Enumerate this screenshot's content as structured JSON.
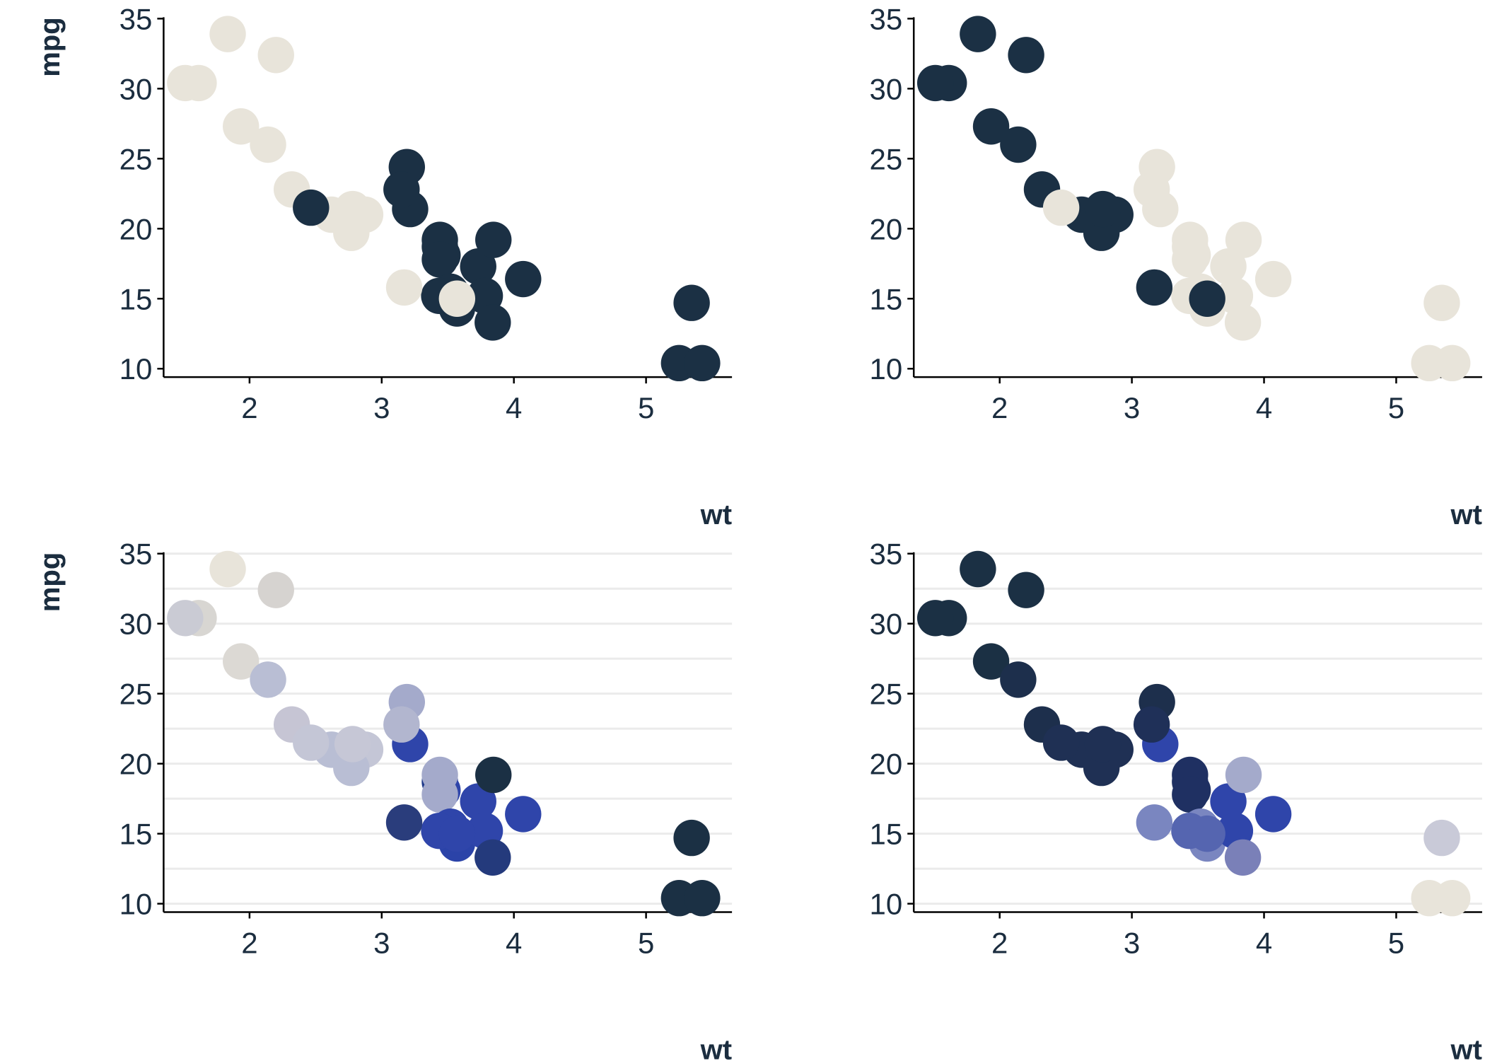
{
  "chart_data": [
    {
      "type": "scatter",
      "xlabel": "wt",
      "ylabel": "mpg",
      "xlim": [
        1.35,
        5.65
      ],
      "ylim": [
        9.4,
        35.1
      ],
      "xticks": [
        2,
        3,
        4,
        5
      ],
      "yticks": [
        10,
        15,
        20,
        25,
        30,
        35
      ],
      "grid": "none",
      "x": [
        2.62,
        2.875,
        2.32,
        3.215,
        3.44,
        3.46,
        3.57,
        3.19,
        3.15,
        3.44,
        3.44,
        4.07,
        3.73,
        3.78,
        5.25,
        5.424,
        5.345,
        2.2,
        1.615,
        1.835,
        2.465,
        3.52,
        3.435,
        3.84,
        3.845,
        1.935,
        2.14,
        1.513,
        3.17,
        2.77,
        3.57,
        2.78
      ],
      "y": [
        21.0,
        21.0,
        22.8,
        21.4,
        18.7,
        18.1,
        14.3,
        24.4,
        22.8,
        19.2,
        17.8,
        16.4,
        17.3,
        15.2,
        10.4,
        10.4,
        14.7,
        32.4,
        30.4,
        33.9,
        21.5,
        15.5,
        15.2,
        13.3,
        19.2,
        27.3,
        26.0,
        30.4,
        15.8,
        19.7,
        15.0,
        21.4
      ],
      "point_colors": [
        "#e8e4da",
        "#e8e4da",
        "#e8e4da",
        "#1b3044",
        "#1b3044",
        "#1b3044",
        "#1b3044",
        "#1b3044",
        "#1b3044",
        "#1b3044",
        "#1b3044",
        "#1b3044",
        "#1b3044",
        "#1b3044",
        "#1b3044",
        "#1b3044",
        "#1b3044",
        "#e8e4da",
        "#e8e4da",
        "#e8e4da",
        "#1b3044",
        "#1b3044",
        "#1b3044",
        "#1b3044",
        "#1b3044",
        "#e8e4da",
        "#e8e4da",
        "#e8e4da",
        "#e8e4da",
        "#e8e4da",
        "#e8e4da",
        "#e8e4da"
      ]
    },
    {
      "type": "scatter",
      "xlabel": "wt",
      "ylabel": "mpg",
      "xlim": [
        1.35,
        5.65
      ],
      "ylim": [
        9.4,
        35.1
      ],
      "xticks": [
        2,
        3,
        4,
        5
      ],
      "yticks": [
        10,
        15,
        20,
        25,
        30,
        35
      ],
      "grid": "none",
      "x": [
        2.62,
        2.875,
        2.32,
        3.215,
        3.44,
        3.46,
        3.57,
        3.19,
        3.15,
        3.44,
        3.44,
        4.07,
        3.73,
        3.78,
        5.25,
        5.424,
        5.345,
        2.2,
        1.615,
        1.835,
        2.465,
        3.52,
        3.435,
        3.84,
        3.845,
        1.935,
        2.14,
        1.513,
        3.17,
        2.77,
        3.57,
        2.78
      ],
      "y": [
        21.0,
        21.0,
        22.8,
        21.4,
        18.7,
        18.1,
        14.3,
        24.4,
        22.8,
        19.2,
        17.8,
        16.4,
        17.3,
        15.2,
        10.4,
        10.4,
        14.7,
        32.4,
        30.4,
        33.9,
        21.5,
        15.5,
        15.2,
        13.3,
        19.2,
        27.3,
        26.0,
        30.4,
        15.8,
        19.7,
        15.0,
        21.4
      ],
      "point_colors": [
        "#1b3044",
        "#1b3044",
        "#1b3044",
        "#e8e4da",
        "#e8e4da",
        "#e8e4da",
        "#e8e4da",
        "#e8e4da",
        "#e8e4da",
        "#e8e4da",
        "#e8e4da",
        "#e8e4da",
        "#e8e4da",
        "#e8e4da",
        "#e8e4da",
        "#e8e4da",
        "#e8e4da",
        "#1b3044",
        "#1b3044",
        "#1b3044",
        "#e8e4da",
        "#e8e4da",
        "#e8e4da",
        "#e8e4da",
        "#e8e4da",
        "#1b3044",
        "#1b3044",
        "#1b3044",
        "#1b3044",
        "#1b3044",
        "#1b3044",
        "#1b3044"
      ]
    },
    {
      "type": "scatter",
      "xlabel": "wt",
      "ylabel": "mpg",
      "xlim": [
        1.35,
        5.65
      ],
      "ylim": [
        9.4,
        35.1
      ],
      "xticks": [
        2,
        3,
        4,
        5
      ],
      "yticks": [
        10,
        15,
        20,
        25,
        30,
        35
      ],
      "grid": "horizontal",
      "x": [
        2.62,
        2.875,
        2.32,
        3.215,
        3.44,
        3.46,
        3.57,
        3.19,
        3.15,
        3.44,
        3.44,
        4.07,
        3.73,
        3.78,
        5.25,
        5.424,
        5.345,
        2.2,
        1.615,
        1.835,
        2.465,
        3.52,
        3.435,
        3.84,
        3.845,
        1.935,
        2.14,
        1.513,
        3.17,
        2.77,
        3.57,
        2.78
      ],
      "y": [
        21.0,
        21.0,
        22.8,
        21.4,
        18.7,
        18.1,
        14.3,
        24.4,
        22.8,
        19.2,
        17.8,
        16.4,
        17.3,
        15.2,
        10.4,
        10.4,
        14.7,
        32.4,
        30.4,
        33.9,
        21.5,
        15.5,
        15.2,
        13.3,
        19.2,
        27.3,
        26.0,
        30.4,
        15.8,
        19.7,
        15.0,
        21.4
      ],
      "point_colors": [
        "#b9bed4",
        "#c4c6d6",
        "#c6c5d4",
        "#2f45aa",
        "#1f3a8a",
        "#2f45aa",
        "#2b43a8",
        "#a4aacb",
        "#b2b6cf",
        "#a4aacb",
        "#a4aacb",
        "#2f45aa",
        "#2f45aa",
        "#2f45aa",
        "#1b3044",
        "#1b3044",
        "#1b3044",
        "#d6d3d0",
        "#d8d6d2",
        "#e8e4da",
        "#c4c6d6",
        "#2f45aa",
        "#2f45aa",
        "#243a7c",
        "#1b3044",
        "#dcd9d4",
        "#b9bed4",
        "#cacbd4",
        "#2a3d7c",
        "#b9bed4",
        "#2f45aa",
        "#c6c7d6"
      ]
    },
    {
      "type": "scatter",
      "xlabel": "wt",
      "ylabel": "mpg",
      "xlim": [
        1.35,
        5.65
      ],
      "ylim": [
        9.4,
        35.1
      ],
      "xticks": [
        2,
        3,
        4,
        5
      ],
      "yticks": [
        10,
        15,
        20,
        25,
        30,
        35
      ],
      "grid": "horizontal",
      "x": [
        2.62,
        2.875,
        2.32,
        3.215,
        3.44,
        3.46,
        3.57,
        3.19,
        3.15,
        3.44,
        3.44,
        4.07,
        3.73,
        3.78,
        5.25,
        5.424,
        5.345,
        2.2,
        1.615,
        1.835,
        2.465,
        3.52,
        3.435,
        3.84,
        3.845,
        1.935,
        2.14,
        1.513,
        3.17,
        2.77,
        3.57,
        2.78
      ],
      "y": [
        21.0,
        21.0,
        22.8,
        21.4,
        18.7,
        18.1,
        14.3,
        24.4,
        22.8,
        19.2,
        17.8,
        16.4,
        17.3,
        15.2,
        10.4,
        10.4,
        14.7,
        32.4,
        30.4,
        33.9,
        21.5,
        15.5,
        15.2,
        13.3,
        19.2,
        27.3,
        26.0,
        30.4,
        15.8,
        19.7,
        15.0,
        21.4
      ],
      "point_colors": [
        "#1f3054",
        "#1f3054",
        "#1d2f4c",
        "#2f45aa",
        "#1f3062",
        "#1f3062",
        "#7a86c0",
        "#1d2f4c",
        "#1f3058",
        "#1f3062",
        "#1f3062",
        "#2f45aa",
        "#2f45aa",
        "#2f45aa",
        "#e8e4da",
        "#e8e4da",
        "#c9cad8",
        "#1b3044",
        "#1b3044",
        "#1b3044",
        "#1f3054",
        "#7a86c0",
        "#5565b0",
        "#7a80b8",
        "#a4aacb",
        "#1b3044",
        "#1d2f4c",
        "#1b3044",
        "#7a86c0",
        "#1f3054",
        "#5565b0",
        "#1f3054"
      ]
    }
  ]
}
